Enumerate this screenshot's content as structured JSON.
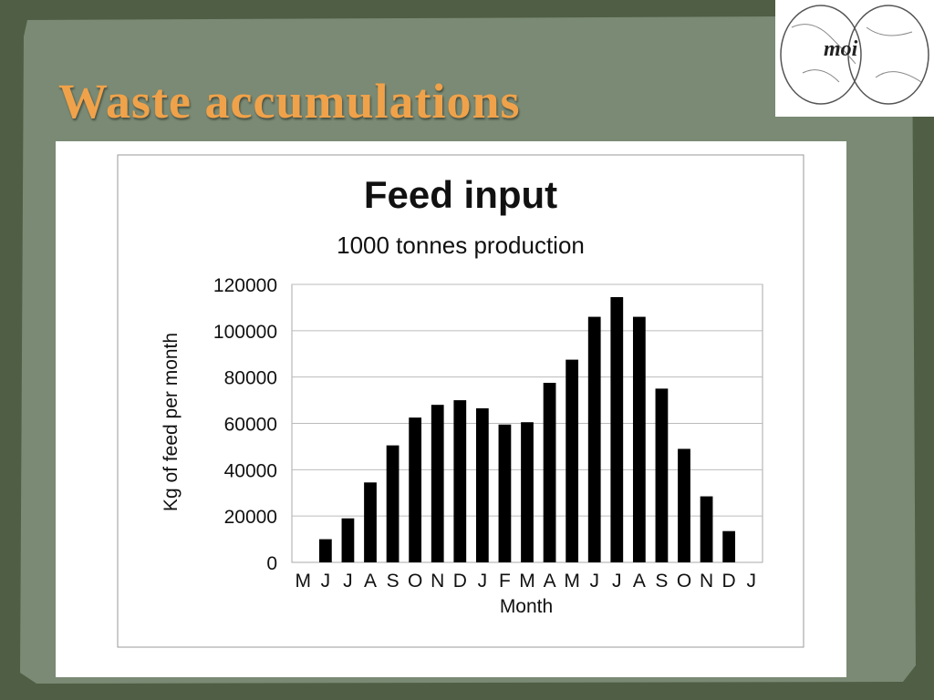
{
  "slide": {
    "title": "Waste accumulations",
    "logo_text": "moi"
  },
  "colors": {
    "background": "#4f5e44",
    "panel": "#7a8a74",
    "title": "#f0a24a",
    "bars": "#000000"
  },
  "chart_data": {
    "type": "bar",
    "title": "Feed input",
    "subtitle": "1000 tonnes production",
    "xlabel": "Month",
    "ylabel": "Kg of feed per month",
    "ylim": [
      0,
      120000
    ],
    "yticks": [
      "0",
      "20000",
      "40000",
      "60000",
      "80000",
      "100000",
      "120000"
    ],
    "grid": true,
    "categories": [
      "M",
      "J",
      "J",
      "A",
      "S",
      "O",
      "N",
      "D",
      "J",
      "F",
      "M",
      "A",
      "M",
      "J",
      "J",
      "A",
      "S",
      "O",
      "N",
      "D",
      "J"
    ],
    "values": [
      null,
      10000,
      19000,
      34500,
      50500,
      62500,
      68000,
      70000,
      66500,
      59500,
      60500,
      77500,
      87500,
      106000,
      114500,
      106000,
      75000,
      49000,
      28500,
      13500,
      null
    ]
  }
}
